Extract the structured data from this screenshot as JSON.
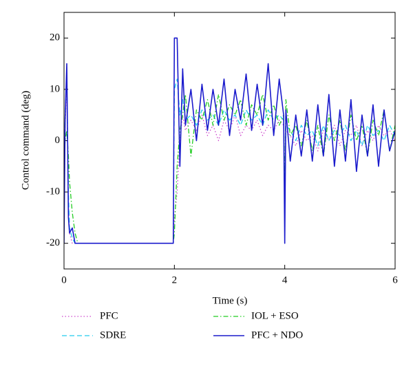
{
  "chart_data": {
    "type": "line",
    "xlabel": "Time (s)",
    "ylabel": "Control command (deg)",
    "xlim": [
      0,
      6
    ],
    "ylim": [
      -25,
      25
    ],
    "xticks": [
      0,
      2,
      4,
      6
    ],
    "yticks": [
      -20,
      -10,
      0,
      10,
      20
    ],
    "x": [
      0,
      0.02,
      0.05,
      0.08,
      0.1,
      0.15,
      0.2,
      0.25,
      0.3,
      0.5,
      1,
      1.5,
      1.98,
      2,
      2.05,
      2.1,
      2.15,
      2.2,
      2.3,
      2.4,
      2.5,
      2.6,
      2.7,
      2.8,
      2.9,
      3,
      3.1,
      3.2,
      3.3,
      3.4,
      3.5,
      3.6,
      3.7,
      3.8,
      3.9,
      3.98,
      4,
      4.02,
      4.1,
      4.2,
      4.3,
      4.4,
      4.5,
      4.6,
      4.7,
      4.8,
      4.9,
      5,
      5.1,
      5.2,
      5.3,
      5.4,
      5.5,
      5.6,
      5.7,
      5.8,
      5.9,
      6
    ],
    "series": [
      {
        "name": "PFC",
        "color": "#cc44cc",
        "style": "dotted",
        "values": [
          -18,
          3,
          10,
          -12,
          -18,
          -20,
          -20,
          -20,
          -20,
          -20,
          -20,
          -20,
          -20,
          -15,
          -10,
          0,
          5,
          2,
          4,
          2,
          5,
          1,
          3,
          0,
          4,
          2,
          5,
          1,
          3,
          2,
          4,
          1,
          3,
          2,
          4,
          3,
          -12,
          2,
          1,
          -1,
          2,
          0,
          1,
          -2,
          2,
          0,
          3,
          -1,
          2,
          1,
          3,
          -1,
          2,
          0,
          3,
          1,
          2,
          0
        ]
      },
      {
        "name": "SDRE",
        "color": "#22ccee",
        "style": "dashed",
        "values": [
          -15,
          5,
          13,
          -10,
          -17,
          -19,
          -20,
          -20,
          -20,
          -20,
          -20,
          -20,
          -20,
          10,
          12,
          5,
          8,
          4,
          5,
          3,
          6,
          4,
          5,
          3,
          6,
          4,
          5,
          3,
          6,
          4,
          5,
          3,
          6,
          4,
          5,
          4,
          -15,
          3,
          2,
          0,
          3,
          1,
          2,
          -1,
          3,
          0,
          2,
          1,
          3,
          0,
          2,
          -1,
          3,
          1,
          2,
          0,
          3,
          1
        ]
      },
      {
        "name": "IOL + ESO",
        "color": "#22cc22",
        "style": "dashdot",
        "values": [
          -5,
          0,
          2,
          -3,
          -8,
          -14,
          -18,
          -20,
          -20,
          -20,
          -20,
          -20,
          -20,
          -18,
          -5,
          2,
          5,
          9,
          -3,
          6,
          4,
          8,
          3,
          9,
          4,
          7,
          5,
          8,
          3,
          7,
          5,
          9,
          4,
          7,
          3,
          5,
          -10,
          8,
          1,
          3,
          -1,
          4,
          -2,
          3,
          -3,
          5,
          0,
          4,
          -2,
          5,
          0,
          3,
          -3,
          4,
          1,
          6,
          -2,
          3
        ]
      },
      {
        "name": "PFC + NDO",
        "color": "#1a1acc",
        "style": "solid",
        "values": [
          -20,
          4,
          15,
          -15,
          -18,
          -17,
          -20,
          -20,
          -20,
          -20,
          -20,
          -20,
          -20,
          20,
          20,
          -5,
          14,
          3,
          10,
          0,
          11,
          2,
          10,
          3,
          12,
          1,
          10,
          4,
          13,
          2,
          11,
          3,
          15,
          1,
          12,
          5,
          -20,
          6,
          -4,
          5,
          -3,
          6,
          -4,
          7,
          -3,
          9,
          -5,
          6,
          -4,
          8,
          -6,
          5,
          -3,
          7,
          -5,
          6,
          -2,
          2
        ]
      }
    ]
  }
}
